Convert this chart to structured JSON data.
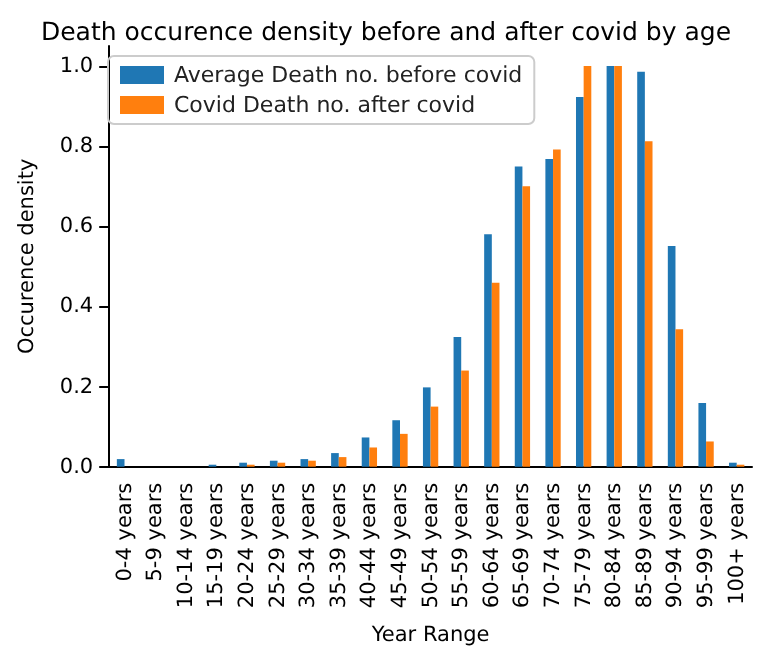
{
  "chart_data": {
    "type": "bar",
    "title": "Death occurence density before and after covid by age",
    "xlabel": "Year Range",
    "ylabel": "Occurence density",
    "categories": [
      "0-4 years",
      "5-9 years",
      "10-14 years",
      "15-19 years",
      "20-24 years",
      "25-29 years",
      "30-34 years",
      "35-39 years",
      "40-44 years",
      "45-49 years",
      "50-54 years",
      "55-59 years",
      "60-64 years",
      "65-69 years",
      "70-74 years",
      "75-79 years",
      "80-84 years",
      "85-89 years",
      "90-94 years",
      "95-99 years",
      "100+ years"
    ],
    "series": [
      {
        "name": "Average Death no. before covid",
        "color": "#1f77b4",
        "values": [
          0.019,
          0,
          0,
          0.005,
          0.01,
          0.015,
          0.019,
          0.034,
          0.073,
          0.116,
          0.198,
          0.324,
          0.58,
          0.749,
          0.768,
          0.923,
          1.0,
          0.986,
          0.551,
          0.159,
          0.01
        ]
      },
      {
        "name": "Covid Death no. after covid",
        "color": "#ff7f0e",
        "values": [
          0,
          0,
          0,
          0,
          0.005,
          0.01,
          0.015,
          0.024,
          0.048,
          0.082,
          0.15,
          0.24,
          0.459,
          0.7,
          0.792,
          1.0,
          1.0,
          0.812,
          0.343,
          0.063,
          0.005
        ]
      }
    ],
    "ylim": [
      0,
      1.05
    ],
    "yticks": [
      {
        "value": 0,
        "label": "0.0"
      },
      {
        "value": 0.2,
        "label": "0.2"
      },
      {
        "value": 0.4,
        "label": "0.4"
      },
      {
        "value": 0.6,
        "label": "0.6"
      },
      {
        "value": 0.8,
        "label": "0.8"
      },
      {
        "value": 1.0,
        "label": "1.0"
      }
    ],
    "grid": false,
    "legend": "top left"
  }
}
